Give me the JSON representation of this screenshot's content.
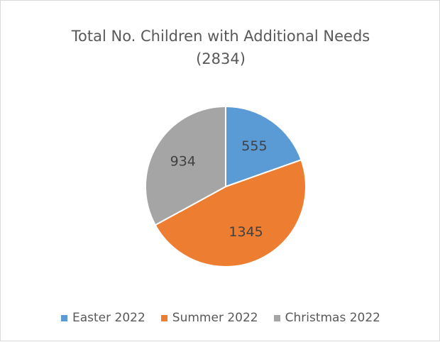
{
  "chart_data": {
    "type": "pie",
    "title": "Total No. Children with Additional Needs",
    "subtitle": "(2834)",
    "categories": [
      "Easter 2022",
      "Summer 2022",
      "Christmas 2022"
    ],
    "values": [
      555,
      1345,
      934
    ],
    "data_labels": [
      "555",
      "1345",
      "934"
    ],
    "colors": [
      "#5b9bd5",
      "#ed7d31",
      "#a5a5a5"
    ],
    "legend_position": "bottom"
  }
}
